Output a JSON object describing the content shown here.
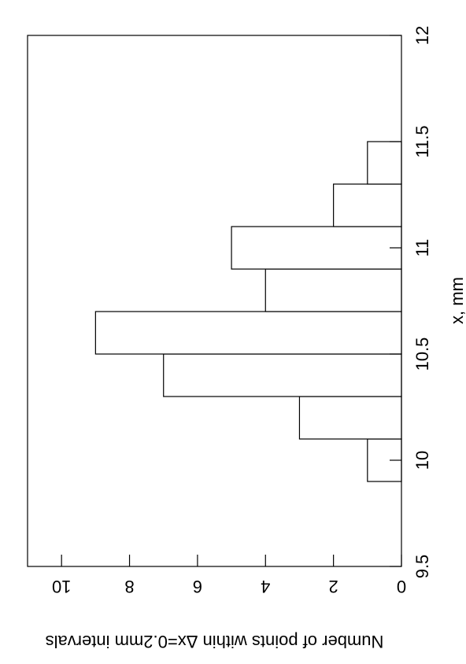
{
  "chart_data": {
    "type": "histogram",
    "xlabel": "x, mm",
    "ylabel": "Number of points within Δx=0.2mm intervals",
    "bins": [
      9.9,
      10.1,
      10.3,
      10.5,
      10.7,
      10.9,
      11.1,
      11.3,
      11.5
    ],
    "values": [
      1,
      3,
      7,
      9,
      4,
      5,
      2,
      1
    ],
    "color": "#ffffff",
    "xlim": [
      9.5,
      12
    ],
    "xticks": [
      9.5,
      10,
      10.5,
      11,
      11.5,
      12
    ],
    "ylim": [
      0,
      11
    ],
    "yticks": [
      0,
      2,
      4,
      6,
      8,
      10
    ],
    "grid": false
  }
}
